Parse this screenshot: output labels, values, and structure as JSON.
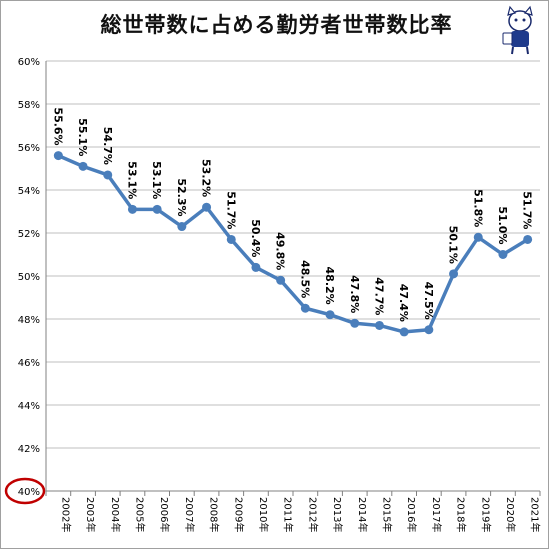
{
  "chart_data": {
    "type": "line",
    "title": "総世帯数に占める勤労者世帯数比率",
    "xlabel": "",
    "ylabel": "",
    "x": [
      "2002年",
      "2003年",
      "2004年",
      "2005年",
      "2006年",
      "2007年",
      "2008年",
      "2009年",
      "2010年",
      "2011年",
      "2012年",
      "2013年",
      "2014年",
      "2015年",
      "2016年",
      "2017年",
      "2018年",
      "2019年",
      "2020年",
      "2021年"
    ],
    "series": [
      {
        "values": [
          55.6,
          55.1,
          54.7,
          53.1,
          53.1,
          52.3,
          53.2,
          51.7,
          50.4,
          49.8,
          48.5,
          48.2,
          47.8,
          47.7,
          47.4,
          47.5,
          50.1,
          51.8,
          51.0,
          51.7
        ],
        "labels": [
          "55.6%",
          "55.1%",
          "54.7%",
          "53.1%",
          "53.1%",
          "52.3%",
          "53.2%",
          "51.7%",
          "50.4%",
          "49.8%",
          "48.5%",
          "48.2%",
          "47.8%",
          "47.7%",
          "47.4%",
          "47.5%",
          "50.1%",
          "51.8%",
          "51.0%",
          "51.7%"
        ]
      }
    ],
    "ylim": [
      40,
      60
    ],
    "yticks": [
      "40%",
      "42%",
      "44%",
      "46%",
      "48%",
      "50%",
      "52%",
      "54%",
      "56%",
      "58%",
      "60%"
    ],
    "grid": true,
    "legend": "none",
    "colors": {
      "line": "#4a7ebb",
      "grid": "#bfbfbf",
      "highlight_circle": "#c00000"
    }
  }
}
